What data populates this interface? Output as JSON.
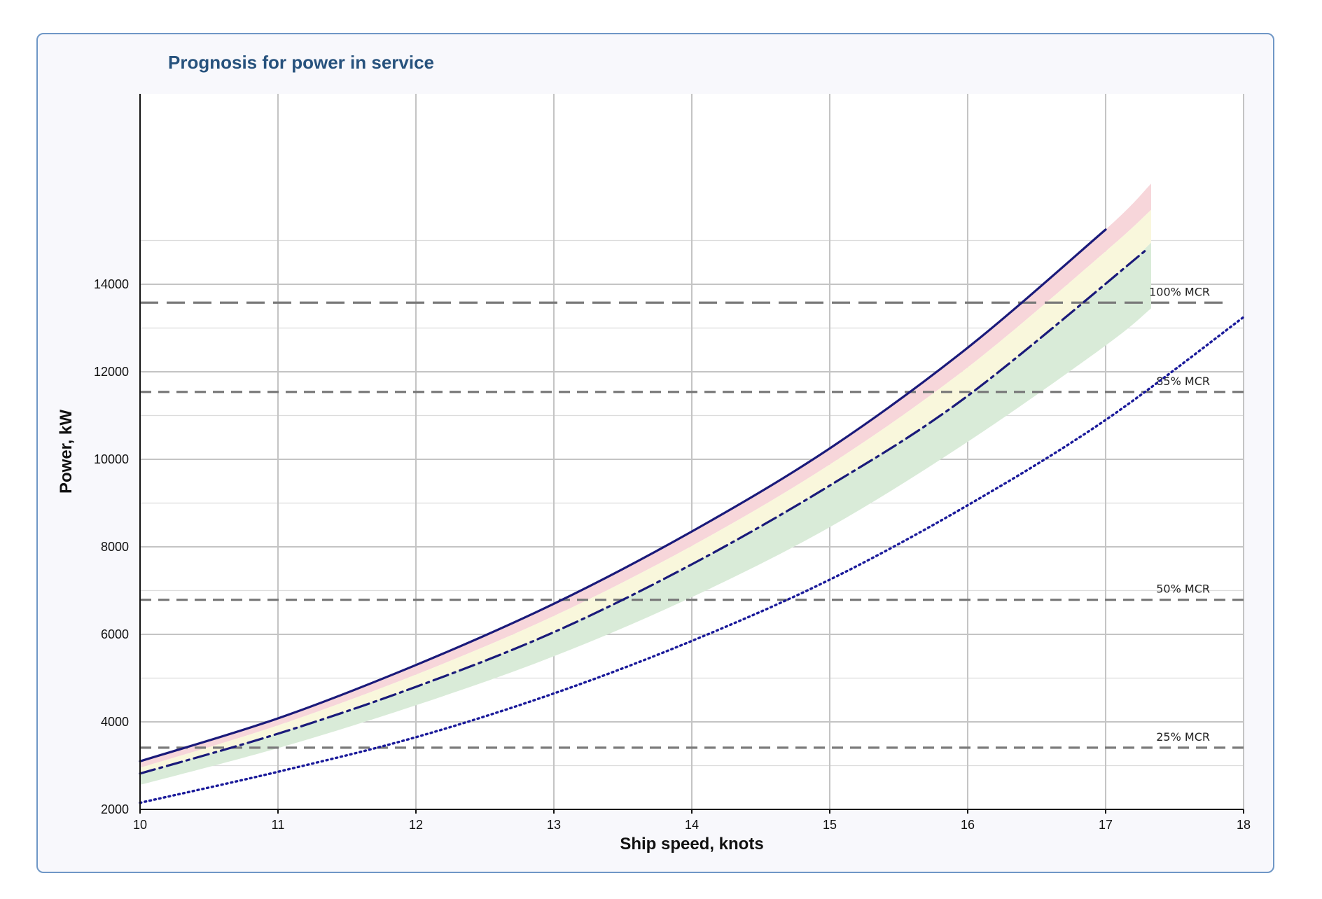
{
  "chart_data": {
    "type": "line",
    "title": "Prognosis for power in service",
    "xlabel": "Ship speed, knots",
    "ylabel": "Power, kW",
    "xlim": [
      10,
      18
    ],
    "ylim": [
      2000,
      15500
    ],
    "x_ticks": [
      "10",
      "11",
      "12",
      "13",
      "14",
      "15",
      "16",
      "17",
      "18"
    ],
    "y_ticks": [
      "2000",
      "4000",
      "6000",
      "8000",
      "10000",
      "12000",
      "14000"
    ],
    "grid": true,
    "series": [
      {
        "style": "solid",
        "color": "#1a1a7a",
        "x": [
          10,
          11,
          12,
          13,
          14,
          15,
          16,
          17
        ],
        "y": [
          3100,
          4080,
          5300,
          6700,
          8350,
          10250,
          12550,
          15250
        ]
      },
      {
        "style": "dash-dot",
        "color": "#1a1a7a",
        "x": [
          10,
          11,
          12,
          13,
          14,
          15,
          16,
          17.3
        ],
        "y": [
          2820,
          3730,
          4800,
          6050,
          7600,
          9400,
          11450,
          14800
        ]
      },
      {
        "style": "dotted",
        "color": "#1a1a9a",
        "x": [
          10,
          11,
          12,
          13,
          14,
          15,
          16,
          17,
          18
        ],
        "y": [
          2150,
          2860,
          3650,
          4650,
          5850,
          7250,
          8950,
          10900,
          13250
        ]
      }
    ],
    "bands": [
      {
        "color": "#f7d6da",
        "x": [
          10,
          11,
          12,
          13,
          14,
          15,
          16,
          17,
          17.33
        ],
        "upper": [
          3100,
          4080,
          5300,
          6700,
          8350,
          10250,
          12550,
          15250,
          16300
        ],
        "lower": [
          2950,
          3920,
          5080,
          6420,
          8020,
          9880,
          12100,
          14750,
          15700
        ]
      },
      {
        "color": "#f9f7dc",
        "x": [
          10,
          11,
          12,
          13,
          14,
          15,
          16,
          17,
          17.33
        ],
        "upper": [
          2950,
          3920,
          5080,
          6420,
          8020,
          9880,
          12100,
          14750,
          15700
        ],
        "lower": [
          2820,
          3730,
          4800,
          6050,
          7600,
          9400,
          11450,
          14000,
          14950
        ]
      },
      {
        "color": "#d9ebd8",
        "x": [
          10,
          11,
          12,
          13,
          14,
          15,
          16,
          17,
          17.33
        ],
        "upper": [
          2820,
          3730,
          4800,
          6050,
          7600,
          9400,
          11450,
          14000,
          14950
        ],
        "lower": [
          2560,
          3400,
          4380,
          5500,
          6850,
          8450,
          10400,
          12600,
          13450
        ]
      }
    ],
    "reference_lines": [
      {
        "label": "100% MCR",
        "y": 13580,
        "x_end": 17.9,
        "style": "long-dash"
      },
      {
        "label": "85% MCR",
        "y": 11540,
        "x_end": 18,
        "style": "dash"
      },
      {
        "label": "50% MCR",
        "y": 6790,
        "x_end": 18,
        "style": "dash"
      },
      {
        "label": "25% MCR",
        "y": 3410,
        "x_end": 18,
        "style": "dash"
      }
    ]
  }
}
